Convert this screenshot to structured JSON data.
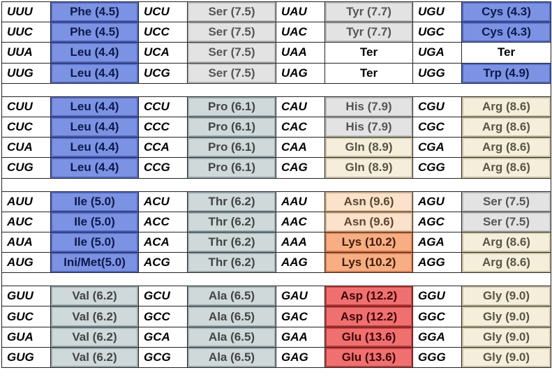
{
  "colors": {
    "blue": "#7c92e3",
    "white": "#ffffff",
    "lgray": "#e3e3e3",
    "slate": "#cfd9da",
    "cream": "#f4eedb",
    "peach": "#fbe2ca",
    "orange": "#f7ae82",
    "red": "#f07070"
  },
  "blocks": [
    {
      "rows": [
        [
          {
            "codon": "UUU",
            "aa": "Phe (4.5)",
            "color": "blue"
          },
          {
            "codon": "UCU",
            "aa": "Ser (7.5)",
            "color": "lgray"
          },
          {
            "codon": "UAU",
            "aa": "Tyr (7.7)",
            "color": "lgray"
          },
          {
            "codon": "UGU",
            "aa": "Cys (4.3)",
            "color": "blue"
          }
        ],
        [
          {
            "codon": "UUC",
            "aa": "Phe (4.5)",
            "color": "blue"
          },
          {
            "codon": "UCC",
            "aa": "Ser (7.5)",
            "color": "lgray"
          },
          {
            "codon": "UAC",
            "aa": "Tyr (7.7)",
            "color": "lgray"
          },
          {
            "codon": "UGC",
            "aa": "Cys (4.3)",
            "color": "blue"
          }
        ],
        [
          {
            "codon": "UUA",
            "aa": "Leu (4.4)",
            "color": "blue"
          },
          {
            "codon": "UCA",
            "aa": "Ser (7.5)",
            "color": "lgray"
          },
          {
            "codon": "UAA",
            "aa": "Ter",
            "color": "white"
          },
          {
            "codon": "UGA",
            "aa": "Ter",
            "color": "white"
          }
        ],
        [
          {
            "codon": "UUG",
            "aa": "Leu (4.4)",
            "color": "blue"
          },
          {
            "codon": "UCG",
            "aa": "Ser (7.5)",
            "color": "lgray"
          },
          {
            "codon": "UAG",
            "aa": "Ter",
            "color": "white"
          },
          {
            "codon": "UGG",
            "aa": "Trp (4.9)",
            "color": "blue"
          }
        ]
      ]
    },
    {
      "rows": [
        [
          {
            "codon": "CUU",
            "aa": "Leu (4.4)",
            "color": "blue"
          },
          {
            "codon": "CCU",
            "aa": "Pro (6.1)",
            "color": "slate"
          },
          {
            "codon": "CAU",
            "aa": "His (7.9)",
            "color": "lgray"
          },
          {
            "codon": "CGU",
            "aa": "Arg (8.6)",
            "color": "cream"
          }
        ],
        [
          {
            "codon": "CUC",
            "aa": "Leu (4.4)",
            "color": "blue"
          },
          {
            "codon": "CCC",
            "aa": "Pro (6.1)",
            "color": "slate"
          },
          {
            "codon": "CAC",
            "aa": "His (7.9)",
            "color": "lgray"
          },
          {
            "codon": "CGC",
            "aa": "Arg (8.6)",
            "color": "cream"
          }
        ],
        [
          {
            "codon": "CUA",
            "aa": "Leu (4.4)",
            "color": "blue"
          },
          {
            "codon": "CCA",
            "aa": "Pro (6.1)",
            "color": "slate"
          },
          {
            "codon": "CAA",
            "aa": "Gln (8.9)",
            "color": "cream"
          },
          {
            "codon": "CGA",
            "aa": "Arg (8.6)",
            "color": "cream"
          }
        ],
        [
          {
            "codon": "CUG",
            "aa": "Leu (4.4)",
            "color": "blue"
          },
          {
            "codon": "CCG",
            "aa": "Pro (6.1)",
            "color": "slate"
          },
          {
            "codon": "CAG",
            "aa": "Gln (8.9)",
            "color": "cream"
          },
          {
            "codon": "CGG",
            "aa": "Arg (8.6)",
            "color": "cream"
          }
        ]
      ]
    },
    {
      "rows": [
        [
          {
            "codon": "AUU",
            "aa": "Ile (5.0)",
            "color": "blue"
          },
          {
            "codon": "ACU",
            "aa": "Thr (6.2)",
            "color": "slate"
          },
          {
            "codon": "AAU",
            "aa": "Asn (9.6)",
            "color": "peach"
          },
          {
            "codon": "AGU",
            "aa": "Ser (7.5)",
            "color": "lgray"
          }
        ],
        [
          {
            "codon": "AUC",
            "aa": "Ile (5.0)",
            "color": "blue"
          },
          {
            "codon": "ACC",
            "aa": "Thr (6.2)",
            "color": "slate"
          },
          {
            "codon": "AAC",
            "aa": "Asn (9.6)",
            "color": "peach"
          },
          {
            "codon": "AGC",
            "aa": "Ser (7.5)",
            "color": "lgray"
          }
        ],
        [
          {
            "codon": "AUA",
            "aa": "Ile (5.0)",
            "color": "blue"
          },
          {
            "codon": "ACA",
            "aa": "Thr (6.2)",
            "color": "slate"
          },
          {
            "codon": "AAA",
            "aa": "Lys (10.2)",
            "color": "orange"
          },
          {
            "codon": "AGA",
            "aa": "Arg (8.6)",
            "color": "cream"
          }
        ],
        [
          {
            "codon": "AUG",
            "aa": "Ini/Met(5.0)",
            "color": "blue"
          },
          {
            "codon": "ACG",
            "aa": "Thr (6.2)",
            "color": "slate"
          },
          {
            "codon": "AAG",
            "aa": "Lys (10.2)",
            "color": "orange"
          },
          {
            "codon": "AGG",
            "aa": "Arg (8.6)",
            "color": "cream"
          }
        ]
      ]
    },
    {
      "rows": [
        [
          {
            "codon": "GUU",
            "aa": "Val (6.2)",
            "color": "slate"
          },
          {
            "codon": "GCU",
            "aa": "Ala (6.5)",
            "color": "slate"
          },
          {
            "codon": "GAU",
            "aa": "Asp (12.2)",
            "color": "red"
          },
          {
            "codon": "GGU",
            "aa": "Gly (9.0)",
            "color": "cream"
          }
        ],
        [
          {
            "codon": "GUC",
            "aa": "Val (6.2)",
            "color": "slate"
          },
          {
            "codon": "GCC",
            "aa": "Ala (6.5)",
            "color": "slate"
          },
          {
            "codon": "GAC",
            "aa": "Asp (12.2)",
            "color": "red"
          },
          {
            "codon": "GGC",
            "aa": "Gly (9.0)",
            "color": "cream"
          }
        ],
        [
          {
            "codon": "GUA",
            "aa": "Val (6.2)",
            "color": "slate"
          },
          {
            "codon": "GCA",
            "aa": "Ala (6.5)",
            "color": "slate"
          },
          {
            "codon": "GAA",
            "aa": "Glu (13.6)",
            "color": "red"
          },
          {
            "codon": "GGA",
            "aa": "Gly (9.0)",
            "color": "cream"
          }
        ],
        [
          {
            "codon": "GUG",
            "aa": "Val (6.2)",
            "color": "slate"
          },
          {
            "codon": "GCG",
            "aa": "Ala (6.5)",
            "color": "slate"
          },
          {
            "codon": "GAG",
            "aa": "Glu (13.6)",
            "color": "red"
          },
          {
            "codon": "GGG",
            "aa": "Gly (9.0)",
            "color": "cream"
          }
        ]
      ]
    }
  ]
}
